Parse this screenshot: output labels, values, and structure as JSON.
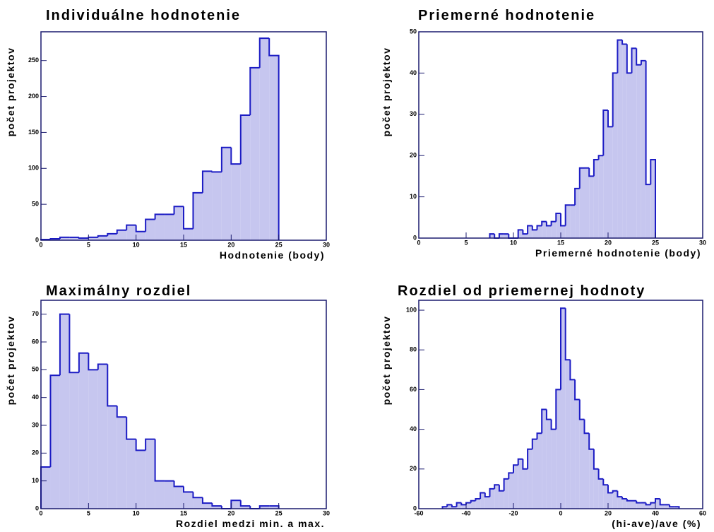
{
  "chart_data": [
    {
      "type": "histogram",
      "title": "Individuálne hodnotenie",
      "xlabel": "Hodnotenie (body)",
      "ylabel": "počet projektov",
      "bins": [
        0,
        1,
        2,
        3,
        4,
        5,
        6,
        7,
        8,
        9,
        10,
        11,
        12,
        13,
        14,
        15,
        16,
        17,
        18,
        19,
        20,
        21,
        22,
        23,
        24,
        25
      ],
      "counts": [
        1,
        2,
        4,
        4,
        3,
        4,
        6,
        9,
        14,
        21,
        12,
        29,
        36,
        36,
        47,
        16,
        66,
        96,
        95,
        129,
        106,
        174,
        240,
        281,
        257
      ],
      "xlim": [
        0,
        30
      ],
      "ylim": [
        0,
        290
      ],
      "xticks": [
        0,
        5,
        10,
        15,
        20,
        25,
        30
      ],
      "yticks": [
        0,
        50,
        100,
        150,
        200,
        250
      ],
      "color": "#1c1cc4",
      "fill": "#c6c6ef"
    },
    {
      "type": "histogram",
      "title": "Priemerné hodnotenie",
      "xlabel": "Priemerné hodnotenie (body)",
      "ylabel": "počet projektov",
      "bins": [
        7.5,
        8,
        8.5,
        9,
        9.5,
        10,
        10.5,
        11,
        11.5,
        12,
        12.5,
        13,
        13.5,
        14,
        14.5,
        15,
        15.5,
        16,
        16.5,
        17,
        17.5,
        18,
        18.5,
        19,
        19.5,
        20,
        20.5,
        21,
        21.5,
        22,
        22.5,
        23,
        23.5,
        24,
        24.5,
        25
      ],
      "counts": [
        1,
        0,
        1,
        1,
        0,
        0,
        2,
        1,
        3,
        2,
        3,
        4,
        3,
        4,
        6,
        3,
        8,
        8,
        12,
        17,
        17,
        15,
        19,
        20,
        31,
        27,
        40,
        48,
        47,
        40,
        46,
        42,
        43,
        13,
        19
      ],
      "xlim": [
        0,
        30
      ],
      "ylim": [
        0,
        50
      ],
      "xticks": [
        0,
        5,
        10,
        15,
        20,
        25,
        30
      ],
      "yticks": [
        0,
        10,
        20,
        30,
        40,
        50
      ],
      "color": "#1c1cc4",
      "fill": "#c6c6ef"
    },
    {
      "type": "histogram",
      "title": "Maximálny rozdiel",
      "xlabel": "Rozdiel medzi min. a max.",
      "ylabel": "počet projektov",
      "bins": [
        0,
        1,
        2,
        3,
        4,
        5,
        6,
        7,
        8,
        9,
        10,
        11,
        12,
        13,
        14,
        15,
        16,
        17,
        18,
        19,
        20,
        21,
        22,
        23,
        24,
        25
      ],
      "counts": [
        15,
        48,
        70,
        49,
        56,
        50,
        52,
        37,
        33,
        25,
        21,
        25,
        10,
        10,
        8,
        6,
        4,
        2,
        1,
        0,
        3,
        1,
        0,
        1,
        1
      ],
      "xlim": [
        0,
        30
      ],
      "ylim": [
        0,
        75
      ],
      "xticks": [
        0,
        5,
        10,
        15,
        20,
        25,
        30
      ],
      "yticks": [
        0,
        10,
        20,
        30,
        40,
        50,
        60,
        70
      ],
      "color": "#1c1cc4",
      "fill": "#c6c6ef"
    },
    {
      "type": "histogram",
      "title": "Rozdiel od priemernej hodnoty",
      "xlabel": "(hi-ave)/ave (%)",
      "ylabel": "počet projektov",
      "bins": [
        -50,
        -48,
        -46,
        -44,
        -42,
        -40,
        -38,
        -36,
        -34,
        -32,
        -30,
        -28,
        -26,
        -24,
        -22,
        -20,
        -18,
        -16,
        -14,
        -12,
        -10,
        -8,
        -6,
        -4,
        -2,
        0,
        2,
        4,
        6,
        8,
        10,
        12,
        14,
        16,
        18,
        20,
        22,
        24,
        26,
        28,
        30,
        32,
        34,
        36,
        38,
        40,
        42,
        44,
        46,
        48,
        50
      ],
      "counts": [
        1,
        2,
        1,
        3,
        2,
        3,
        4,
        5,
        8,
        6,
        10,
        12,
        9,
        15,
        18,
        22,
        25,
        20,
        30,
        35,
        38,
        50,
        45,
        40,
        60,
        101,
        75,
        65,
        55,
        45,
        38,
        30,
        20,
        15,
        12,
        8,
        9,
        6,
        5,
        4,
        4,
        3,
        3,
        2,
        3,
        5,
        2,
        2,
        1,
        1
      ],
      "xlim": [
        -60,
        60
      ],
      "ylim": [
        0,
        105
      ],
      "xticks": [
        -60,
        -40,
        -20,
        0,
        20,
        40,
        60
      ],
      "yticks": [
        0,
        20,
        40,
        60,
        80,
        100
      ],
      "color": "#1c1cc4",
      "fill": "#c6c6ef"
    }
  ]
}
